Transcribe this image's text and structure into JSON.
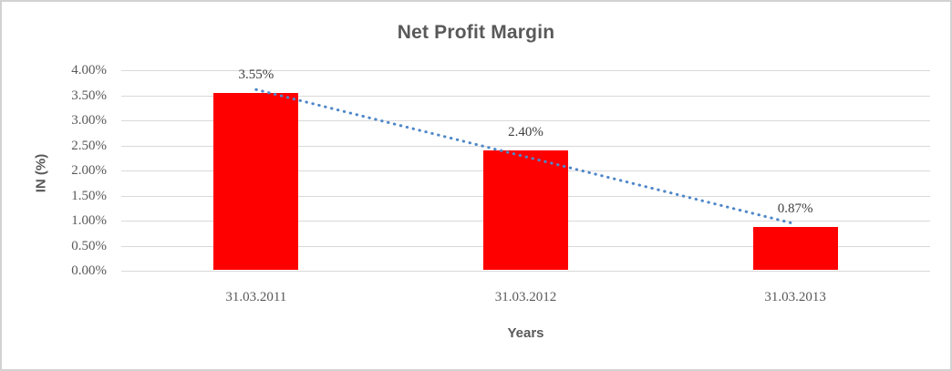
{
  "chart_data": {
    "type": "bar",
    "title": "Net Profit Margin",
    "xlabel": "Years",
    "ylabel": "IN (%)",
    "categories": [
      "31.03.2011",
      "31.03.2012",
      "31.03.2013"
    ],
    "values": [
      3.55,
      2.4,
      0.87
    ],
    "data_labels": [
      "3.55%",
      "2.40%",
      "0.87%"
    ],
    "ylim": [
      0,
      4
    ],
    "ytick_step": 0.5,
    "ytick_labels": [
      "0.00%",
      "0.50%",
      "1.00%",
      "1.50%",
      "2.00%",
      "2.50%",
      "3.00%",
      "3.50%",
      "4.00%"
    ],
    "grid": true,
    "legend": "none",
    "colors": {
      "bar": "#ff0000",
      "trendline": "#4f87c8",
      "gridline": "#d9d9d9",
      "title_text": "#595959",
      "tick_text": "#595959",
      "data_label_text": "#3f3f3f"
    },
    "trendline": {
      "type": "linear",
      "style": "dotted"
    }
  }
}
